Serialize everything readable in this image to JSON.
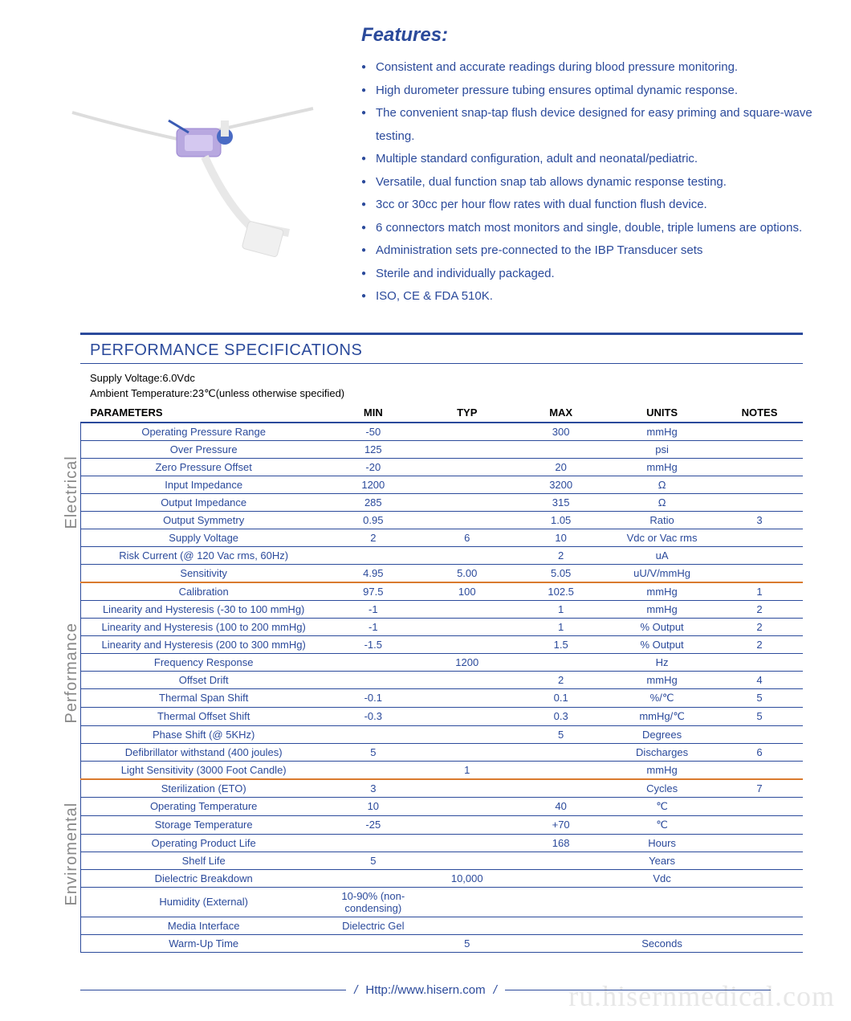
{
  "colors": {
    "accent": "#2b4a9b",
    "section_divider": "#d97a2e",
    "text": "#333333",
    "vlabel": "#888888",
    "bg": "#ffffff"
  },
  "features": {
    "title": "Features:",
    "items": [
      "Consistent and accurate readings during blood pressure monitoring.",
      "High durometer pressure tubing ensures optimal dynamic response.",
      "The convenient snap-tap flush device designed for easy priming and square-wave testing.",
      "Multiple standard configuration, adult and neonatal/pediatric.",
      "Versatile, dual function snap tab allows dynamic response testing.",
      "3cc or 30cc per hour flow rates with dual function flush device.",
      "6 connectors match most monitors and single, double, triple lumens are options.",
      "Administration sets pre-connected to the IBP Transducer sets",
      "Sterile and individually packaged.",
      "ISO, CE & FDA 510K."
    ]
  },
  "specs": {
    "title": "PERFORMANCE SPECIFICATIONS",
    "meta1": "Supply Voltage:6.0Vdc",
    "meta2": "Ambient Temperature:23℃(unless otherwise specified)",
    "headers": [
      "PARAMETERS",
      "MIN",
      "TYP",
      "MAX",
      "UNITS",
      "NOTES"
    ],
    "sections": [
      {
        "label": "Electrical",
        "rows": [
          {
            "p": "Operating Pressure Range",
            "min": "-50",
            "typ": "",
            "max": "300",
            "units": "mmHg",
            "notes": ""
          },
          {
            "p": "Over  Pressure",
            "min": "125",
            "typ": "",
            "max": "",
            "units": "psi",
            "notes": ""
          },
          {
            "p": "Zero Pressure Offset",
            "min": "-20",
            "typ": "",
            "max": "20",
            "units": "mmHg",
            "notes": ""
          },
          {
            "p": "Input Impedance",
            "min": "1200",
            "typ": "",
            "max": "3200",
            "units": "Ω",
            "notes": ""
          },
          {
            "p": "Output Impedance",
            "min": "285",
            "typ": "",
            "max": "315",
            "units": "Ω",
            "notes": ""
          },
          {
            "p": "Output Symmetry",
            "min": "0.95",
            "typ": "",
            "max": "1.05",
            "units": "Ratio",
            "notes": "3"
          },
          {
            "p": "Supply Voltage",
            "min": "2",
            "typ": "6",
            "max": "10",
            "units": "Vdc or Vac rms",
            "notes": ""
          },
          {
            "p": "Risk Current (@ 120 Vac rms, 60Hz)",
            "min": "",
            "typ": "",
            "max": "2",
            "units": "uA",
            "notes": ""
          },
          {
            "p": "Sensitivity",
            "min": "4.95",
            "typ": "5.00",
            "max": "5.05",
            "units": "uU/V/mmHg",
            "notes": ""
          }
        ]
      },
      {
        "label": "Performance",
        "rows": [
          {
            "p": "Calibration",
            "min": "97.5",
            "typ": "100",
            "max": "102.5",
            "units": "mmHg",
            "notes": "1"
          },
          {
            "p": "Linearity and Hysteresis (-30 to 100 mmHg)",
            "min": "-1",
            "typ": "",
            "max": "1",
            "units": "mmHg",
            "notes": "2"
          },
          {
            "p": "Linearity and Hysteresis (100 to 200 mmHg)",
            "min": "-1",
            "typ": "",
            "max": "1",
            "units": "% Output",
            "notes": "2"
          },
          {
            "p": "Linearity and Hysteresis (200 to 300 mmHg)",
            "min": "-1.5",
            "typ": "",
            "max": "1.5",
            "units": "% Output",
            "notes": "2"
          },
          {
            "p": "Frequency Response",
            "min": "",
            "typ": "1200",
            "max": "",
            "units": "Hz",
            "notes": ""
          },
          {
            "p": "Offset Drift",
            "min": "",
            "typ": "",
            "max": "2",
            "units": "mmHg",
            "notes": "4"
          },
          {
            "p": "Thermal Span Shift",
            "min": "-0.1",
            "typ": "",
            "max": "0.1",
            "units": "%/℃",
            "notes": "5"
          },
          {
            "p": "Thermal Offset Shift",
            "min": "-0.3",
            "typ": "",
            "max": "0.3",
            "units": "mmHg/℃",
            "notes": "5"
          },
          {
            "p": "Phase Shift (@ 5KHz)",
            "min": "",
            "typ": "",
            "max": "5",
            "units": "Degrees",
            "notes": ""
          },
          {
            "p": "Defibrillator withstand (400 joules)",
            "min": "5",
            "typ": "",
            "max": "",
            "units": "Discharges",
            "notes": "6"
          },
          {
            "p": "Light Sensitivity (3000 Foot Candle)",
            "min": "",
            "typ": "1",
            "max": "",
            "units": "mmHg",
            "notes": ""
          }
        ]
      },
      {
        "label": "Enviromental",
        "rows": [
          {
            "p": "Sterilization (ETO)",
            "min": "3",
            "typ": "",
            "max": "",
            "units": "Cycles",
            "notes": "7"
          },
          {
            "p": "Operating Temperature",
            "min": "10",
            "typ": "",
            "max": "40",
            "units": "℃",
            "notes": ""
          },
          {
            "p": "Storage Temperature",
            "min": "-25",
            "typ": "",
            "max": "+70",
            "units": "℃",
            "notes": ""
          },
          {
            "p": "Operating Product Life",
            "min": "",
            "typ": "",
            "max": "168",
            "units": "Hours",
            "notes": ""
          },
          {
            "p": "Shelf Life",
            "min": "5",
            "typ": "",
            "max": "",
            "units": "Years",
            "notes": ""
          },
          {
            "p": "Dielectric Breakdown",
            "min": "",
            "typ": "10,000",
            "max": "",
            "units": "Vdc",
            "notes": ""
          },
          {
            "p": "Humidity (External)",
            "min": "10-90% (non-condensing)",
            "typ": "",
            "max": "",
            "units": "",
            "notes": ""
          },
          {
            "p": "Media Interface",
            "min": "Dielectric Gel",
            "typ": "",
            "max": "",
            "units": "",
            "notes": ""
          },
          {
            "p": "Warm-Up Time",
            "min": "",
            "typ": "5",
            "max": "",
            "units": "Seconds",
            "notes": ""
          }
        ]
      }
    ],
    "col_widths_pct": [
      34,
      13,
      13,
      13,
      15,
      12
    ]
  },
  "footer": {
    "url": "Http://www.hisern.com"
  },
  "watermark": "ru.hisernmedical.com"
}
